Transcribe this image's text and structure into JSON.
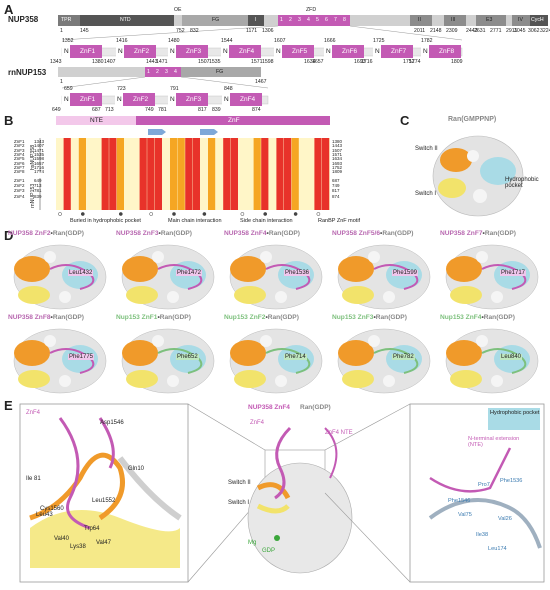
{
  "panelA": {
    "letter": "A",
    "nup358_label": "NUP358",
    "nup153_label": "rnNUP153",
    "domain_labels": {
      "tpr": "TPR",
      "ntd": "NTD",
      "oe": "OE",
      "fg": "FG",
      "i": "I",
      "zfd": "ZFD",
      "ii": "II",
      "iii": "III",
      "e3": "E3",
      "iv": "IV",
      "cych": "CycH",
      "fg153": "FG"
    },
    "zfd_numbers": [
      "1",
      "2",
      "3",
      "4",
      "5",
      "6",
      "7",
      "8"
    ],
    "nup358_ticks": [
      "1",
      "145",
      "752",
      "832",
      "1171",
      "1306",
      "2011",
      "2148",
      "2309",
      "2443",
      "2631",
      "2771",
      "2911",
      "3045",
      "3062",
      "3224"
    ],
    "nup358_zf_top": [
      "1352",
      "1416",
      "1480",
      "1544",
      "1607",
      "1666",
      "1725",
      "1782"
    ],
    "nup358_zf_bottom": [
      "1343",
      "1380",
      "1407",
      "1443",
      "1471",
      "1507",
      "1535",
      "1571",
      "1598",
      "1634",
      "1657",
      "1693",
      "1716",
      "1752",
      "1774",
      "1809"
    ],
    "nup358_zf_names": [
      "ZnF1",
      "ZnF2",
      "ZnF3",
      "ZnF4",
      "ZnF5",
      "ZnF6",
      "ZnF7",
      "ZnF8"
    ],
    "nup153_ticks": [
      "1",
      "1467"
    ],
    "nup153_zfd": [
      "1",
      "2",
      "3",
      "4"
    ],
    "nup153_zf_top": [
      "659",
      "723",
      "791",
      "848"
    ],
    "nup153_zf_bottom": [
      "649",
      "687",
      "713",
      "749",
      "781",
      "817",
      "839",
      "874"
    ],
    "nup153_zf_names": [
      "ZnF1",
      "ZnF2",
      "ZnF3",
      "ZnF4"
    ],
    "n_letter": "N"
  },
  "panelB": {
    "letter": "B",
    "nte": "NTE",
    "znf": "ZnF",
    "hs_label": "hsNUP358",
    "rn_label": "rnNUP153",
    "hs_rows": [
      {
        "name": "ZnF1",
        "start": "1343",
        "end": "1380"
      },
      {
        "name": "ZnF2",
        "start": "1407",
        "end": "1443"
      },
      {
        "name": "ZnF3",
        "start": "1471",
        "end": "1507"
      },
      {
        "name": "ZnF4",
        "start": "1535",
        "end": "1571"
      },
      {
        "name": "ZnF5",
        "start": "1598",
        "end": "1634"
      },
      {
        "name": "ZnF6",
        "start": "1657",
        "end": "1693"
      },
      {
        "name": "ZnF7",
        "start": "1716",
        "end": "1752"
      },
      {
        "name": "ZnF8",
        "start": "1774",
        "end": "1809"
      }
    ],
    "rn_rows": [
      {
        "name": "ZnF1",
        "start": "649",
        "end": "687"
      },
      {
        "name": "ZnF2",
        "start": "713",
        "end": "749"
      },
      {
        "name": "ZnF3",
        "start": "781",
        "end": "817"
      },
      {
        "name": "ZnF4",
        "start": "839",
        "end": "874"
      }
    ],
    "legend": [
      "Buried in hydrophobic pocket",
      "Main chain interaction",
      "Side chain interaction",
      "RanBP ZnF motif"
    ]
  },
  "panelC": {
    "letter": "C",
    "title": "Ran(GMPPNP)",
    "switch2": "Switch II",
    "switch1": "Switch I",
    "pocket": "Hydrophobic pocket"
  },
  "panelD": {
    "letter": "D",
    "complexes": [
      {
        "protein": "NUP358",
        "znf": "ZnF2",
        "ran": "Ran(GDP)",
        "residue": "Leu1432"
      },
      {
        "protein": "NUP358",
        "znf": "ZnF3",
        "ran": "Ran(GDP)",
        "residue": "Phe1472"
      },
      {
        "protein": "NUP358",
        "znf": "ZnF4",
        "ran": "Ran(GDP)",
        "residue": "Phe1536"
      },
      {
        "protein": "NUP358",
        "znf": "ZnF5/6",
        "ran": "Ran(GDP)",
        "residue": "Phe1599"
      },
      {
        "protein": "NUP358",
        "znf": "ZnF7",
        "ran": "Ran(GDP)",
        "residue": "Phe1717"
      },
      {
        "protein": "NUP358",
        "znf": "ZnF8",
        "ran": "Ran(GDP)",
        "residue": "Phe1775"
      },
      {
        "protein": "Nup153",
        "znf": "ZnF1",
        "ran": "Ran(GDP)",
        "residue": "Phe652"
      },
      {
        "protein": "Nup153",
        "znf": "ZnF2",
        "ran": "Ran(GDP)",
        "residue": "Phe714"
      },
      {
        "protein": "Nup153",
        "znf": "ZnF3",
        "ran": "Ran(GDP)",
        "residue": "Phe782"
      },
      {
        "protein": "Nup153",
        "znf": "ZnF4",
        "ran": "Ran(GDP)",
        "residue": "Leu840"
      }
    ],
    "dot": "•"
  },
  "panelE": {
    "letter": "E",
    "center_title_protein": "NUP358 ZnF4",
    "center_title_ran": "Ran(GDP)",
    "left_labels": [
      "ZnF4",
      "Asp1546",
      "Ile 81",
      "Gln10",
      "Cys1560",
      "Leu1552",
      "Leu43",
      "Trp64",
      "Val40",
      "Val47",
      "Lys38"
    ],
    "center_labels": [
      "ZnF4",
      "ZnF4 NTE",
      "Switch II",
      "Switch I",
      "Mg",
      "GDP"
    ],
    "right_labels": [
      "Hydrophobic pocket",
      "N-terminal extension (NTE)",
      "Phe1536",
      "Pro7",
      "Phe1546",
      "Val75",
      "Val26",
      "Ile38",
      "Leu174"
    ],
    "colors": {
      "switch1": "#f2e36b",
      "switch2": "#f09a2a",
      "pocket": "#a9dbe6",
      "znf": "#c35ab4",
      "nup358": "#b868b0",
      "nup153": "#7dc07d"
    }
  }
}
